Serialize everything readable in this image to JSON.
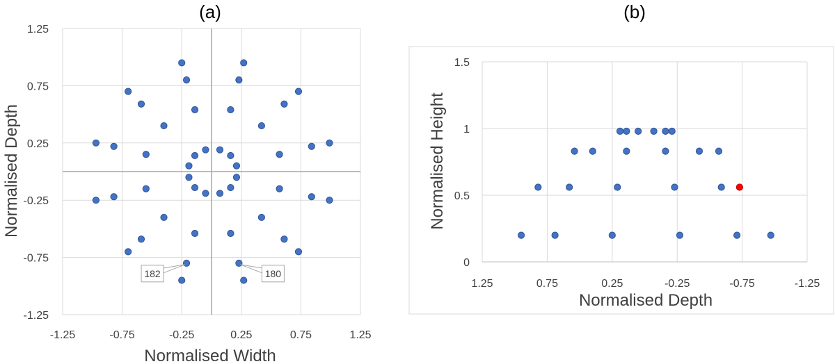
{
  "chart_data": [
    {
      "type": "scatter",
      "title": "(a)",
      "xlabel": "Normalised Width",
      "ylabel": "Normalised Depth",
      "xlim": [
        -1.25,
        1.25
      ],
      "ylim": [
        -1.25,
        1.25
      ],
      "xticks": [
        "-1.25",
        "-0.75",
        "-0.25",
        "0.25",
        "0.75",
        "1.25"
      ],
      "yticks": [
        "1.25",
        "0.75",
        "0.25",
        "-0.25",
        "-0.75",
        "-1.25"
      ],
      "grid": true,
      "marker_color": "#4472c4",
      "points": [
        {
          "x": -0.25,
          "y": 0.95
        },
        {
          "x": 0.27,
          "y": 0.95
        },
        {
          "x": -0.21,
          "y": 0.8
        },
        {
          "x": 0.23,
          "y": 0.8
        },
        {
          "x": -0.7,
          "y": 0.7
        },
        {
          "x": 0.73,
          "y": 0.7
        },
        {
          "x": -0.59,
          "y": 0.59
        },
        {
          "x": 0.61,
          "y": 0.59
        },
        {
          "x": -0.14,
          "y": 0.54
        },
        {
          "x": 0.16,
          "y": 0.54
        },
        {
          "x": -0.4,
          "y": 0.4
        },
        {
          "x": 0.42,
          "y": 0.4
        },
        {
          "x": -0.97,
          "y": 0.25
        },
        {
          "x": 0.99,
          "y": 0.25
        },
        {
          "x": -0.82,
          "y": 0.22
        },
        {
          "x": 0.84,
          "y": 0.22
        },
        {
          "x": -0.55,
          "y": 0.15
        },
        {
          "x": 0.57,
          "y": 0.15
        },
        {
          "x": -0.05,
          "y": 0.19
        },
        {
          "x": 0.07,
          "y": 0.19
        },
        {
          "x": -0.14,
          "y": 0.14
        },
        {
          "x": 0.16,
          "y": 0.14
        },
        {
          "x": -0.19,
          "y": 0.05
        },
        {
          "x": 0.21,
          "y": 0.05
        },
        {
          "x": -0.19,
          "y": -0.05
        },
        {
          "x": 0.21,
          "y": -0.05
        },
        {
          "x": -0.14,
          "y": -0.14
        },
        {
          "x": 0.16,
          "y": -0.14
        },
        {
          "x": -0.05,
          "y": -0.19
        },
        {
          "x": 0.07,
          "y": -0.19
        },
        {
          "x": -0.55,
          "y": -0.15
        },
        {
          "x": 0.57,
          "y": -0.15
        },
        {
          "x": -0.82,
          "y": -0.22
        },
        {
          "x": 0.84,
          "y": -0.22
        },
        {
          "x": -0.97,
          "y": -0.25
        },
        {
          "x": 0.99,
          "y": -0.25
        },
        {
          "x": -0.4,
          "y": -0.4
        },
        {
          "x": 0.42,
          "y": -0.4
        },
        {
          "x": -0.14,
          "y": -0.54
        },
        {
          "x": 0.16,
          "y": -0.54
        },
        {
          "x": -0.59,
          "y": -0.59
        },
        {
          "x": 0.61,
          "y": -0.59
        },
        {
          "x": -0.7,
          "y": -0.7
        },
        {
          "x": 0.73,
          "y": -0.7
        },
        {
          "x": -0.21,
          "y": -0.8
        },
        {
          "x": 0.23,
          "y": -0.8
        },
        {
          "x": -0.25,
          "y": -0.95
        },
        {
          "x": 0.27,
          "y": -0.95
        }
      ],
      "annotations": [
        {
          "text": "182",
          "x": -0.21,
          "y": -0.8
        },
        {
          "text": "180",
          "x": 0.23,
          "y": -0.8
        }
      ]
    },
    {
      "type": "scatter",
      "title": "(b)",
      "xlabel": "Normalised Depth",
      "ylabel": "Normalised Height",
      "xlim": [
        1.25,
        -1.25
      ],
      "ylim": [
        0,
        1.5
      ],
      "xticks": [
        "1.25",
        "0.75",
        "0.25",
        "-0.25",
        "-0.75",
        "-1.25"
      ],
      "yticks": [
        "1.5",
        "1",
        "0.5",
        "0"
      ],
      "x_reversed": true,
      "grid": true,
      "marker_color": "#4472c4",
      "highlight_color": "#ff0000",
      "points": [
        {
          "x": 0.95,
          "y": 0.2
        },
        {
          "x": 0.69,
          "y": 0.2
        },
        {
          "x": 0.25,
          "y": 0.2
        },
        {
          "x": -0.27,
          "y": 0.2
        },
        {
          "x": -0.71,
          "y": 0.2
        },
        {
          "x": -0.97,
          "y": 0.2
        },
        {
          "x": 0.82,
          "y": 0.56
        },
        {
          "x": 0.58,
          "y": 0.56
        },
        {
          "x": 0.21,
          "y": 0.56
        },
        {
          "x": -0.23,
          "y": 0.56
        },
        {
          "x": -0.59,
          "y": 0.56
        },
        {
          "x": 0.54,
          "y": 0.83
        },
        {
          "x": 0.4,
          "y": 0.83
        },
        {
          "x": 0.14,
          "y": 0.83
        },
        {
          "x": -0.16,
          "y": 0.83
        },
        {
          "x": -0.42,
          "y": 0.83
        },
        {
          "x": -0.57,
          "y": 0.83
        },
        {
          "x": 0.19,
          "y": 0.98
        },
        {
          "x": 0.14,
          "y": 0.98
        },
        {
          "x": 0.05,
          "y": 0.98
        },
        {
          "x": -0.07,
          "y": 0.98
        },
        {
          "x": -0.16,
          "y": 0.98
        },
        {
          "x": -0.21,
          "y": 0.98
        }
      ],
      "highlight_points": [
        {
          "x": -0.73,
          "y": 0.56
        }
      ]
    }
  ]
}
